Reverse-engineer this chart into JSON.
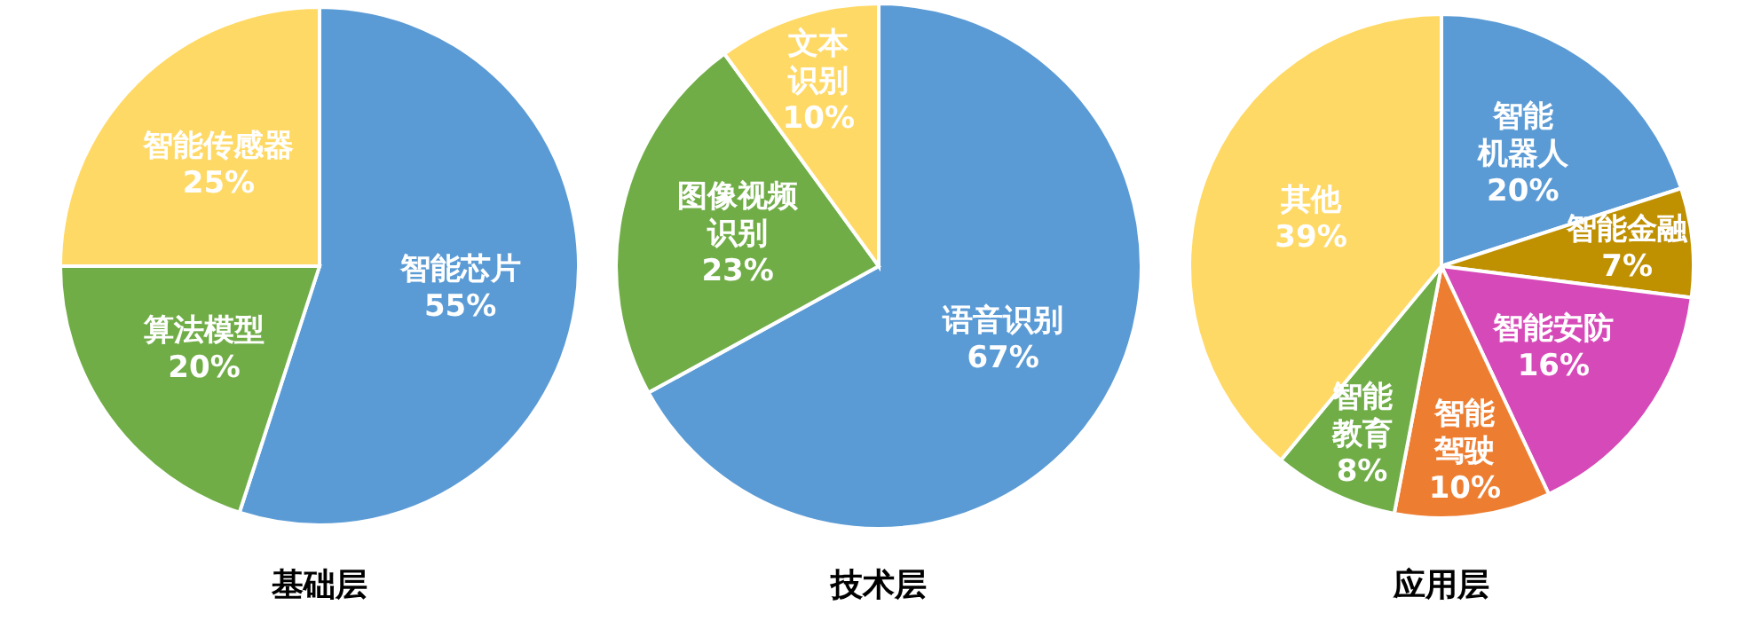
{
  "chart_data": [
    {
      "type": "pie",
      "title": "基础层",
      "categories": [
        "智能芯片",
        "算法模型",
        "智能传感器"
      ],
      "values": [
        55,
        20,
        25
      ],
      "value_labels": [
        "55%",
        "20%",
        "25%"
      ],
      "colors": [
        "#5b9bd5",
        "#70ad47",
        "#ffd966"
      ]
    },
    {
      "type": "pie",
      "title": "技术层",
      "categories": [
        "语音识别",
        "图像视频识别",
        "文本识别"
      ],
      "values": [
        67,
        23,
        10
      ],
      "value_labels": [
        "67%",
        "23%",
        "10%"
      ],
      "colors": [
        "#5b9bd5",
        "#70ad47",
        "#ffd966"
      ]
    },
    {
      "type": "pie",
      "title": "应用层",
      "categories": [
        "智能机器人",
        "智能金融",
        "智能安防",
        "智能驾驶",
        "智能教育",
        "其他"
      ],
      "values": [
        20,
        7,
        16,
        10,
        8,
        39
      ],
      "value_labels": [
        "20%",
        "7%",
        "16%",
        "10%",
        "8%",
        "39%"
      ],
      "colors": [
        "#5b9bd5",
        "#bf9000",
        "#d649b8",
        "#ed7d31",
        "#70ad47",
        "#ffd966"
      ]
    }
  ]
}
